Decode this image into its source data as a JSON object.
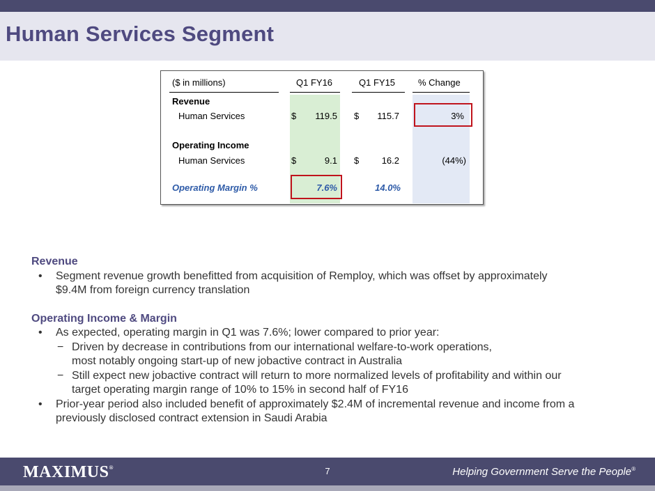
{
  "title": "Human Services Segment",
  "table": {
    "header_label": "($ in millions)",
    "col1": "Q1 FY16",
    "col2": "Q1 FY15",
    "col3": "% Change",
    "revenue_heading": "Revenue",
    "revenue_row": {
      "label": "Human Services",
      "cur1": "$",
      "v1": "119.5",
      "cur2": "$",
      "v2": "115.7",
      "change": "3%"
    },
    "opinc_heading": "Operating Income",
    "opinc_row": {
      "label": "Human Services",
      "cur1": "$",
      "v1": "9.1",
      "cur2": "$",
      "v2": "16.2",
      "change": "(44%)"
    },
    "margin_row": {
      "label": "Operating Margin %",
      "v1": "7.6%",
      "v2": "14.0%"
    }
  },
  "body": {
    "revenue_heading": "Revenue",
    "revenue_bullet": [
      "Segment revenue growth benefitted from acquisition of Remploy, which was offset by approximately",
      "$9.4M from foreign currency translation"
    ],
    "margin_heading": "Operating Income & Margin",
    "margin_bullet1": "As expected, operating margin in Q1 was 7.6%; lower compared to prior year:",
    "sub1": [
      "Driven by decrease in contributions from our international welfare-to-work operations,",
      "most notably ongoing start-up of new jobactive contract in Australia"
    ],
    "sub2": [
      "Still expect new jobactive contract will return to more normalized levels of profitability and within our",
      "target operating margin range of 10% to 15% in second half of FY16"
    ],
    "margin_bullet2": [
      "Prior-year period also included benefit of approximately $2.4M of incremental revenue and income from a",
      "previously disclosed contract extension in Saudi Arabia"
    ],
    "bullet_mark": "•",
    "dash_mark": "−"
  },
  "footer": {
    "logo": "MAXIMUS",
    "logo_mark": "®",
    "page": "7",
    "tagline": "Helping Government Serve the People",
    "tagline_mark": "®"
  }
}
